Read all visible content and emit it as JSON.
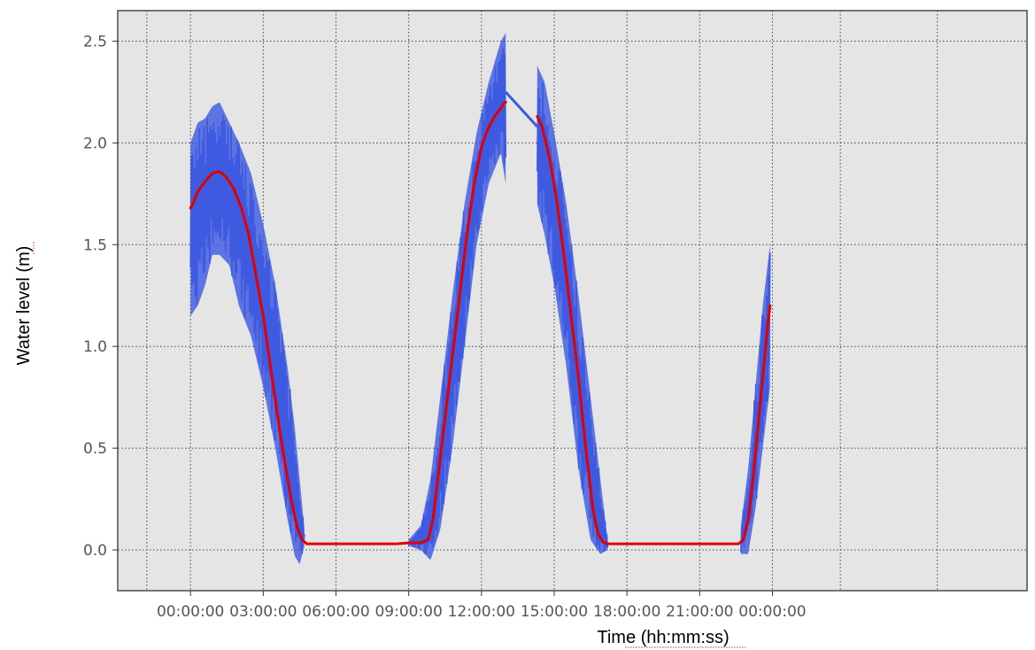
{
  "chart_data": {
    "type": "line",
    "xlabel": "Time (hh:mm:ss)",
    "ylabel": "Water level (m)",
    "x_unit": "hours",
    "xlim": [
      -3.0,
      34.5
    ],
    "ylim": [
      -0.2,
      2.65
    ],
    "x_ticks": [
      {
        "value": 0,
        "label": "00:00:00"
      },
      {
        "value": 3,
        "label": "03:00:00"
      },
      {
        "value": 6,
        "label": "06:00:00"
      },
      {
        "value": 9,
        "label": "09:00:00"
      },
      {
        "value": 12,
        "label": "12:00:00"
      },
      {
        "value": 15,
        "label": "15:00:00"
      },
      {
        "value": 18,
        "label": "18:00:00"
      },
      {
        "value": 21,
        "label": "21:00:00"
      },
      {
        "value": 24,
        "label": "00:00:00"
      }
    ],
    "extra_vertical_grid": [
      -1.8,
      26.8,
      30.8
    ],
    "y_ticks": [
      0.0,
      0.5,
      1.0,
      1.5,
      2.0,
      2.5
    ],
    "y_tick_labels": [
      "0.0",
      "0.5",
      "1.0",
      "1.5",
      "2.0",
      "2.5"
    ],
    "grid": true,
    "background": "#e5e5e5",
    "series": [
      {
        "color": "#3e5ae0",
        "style": "noisy-band",
        "gap_line": {
          "from": {
            "x": 13.0,
            "y": 2.25
          },
          "to": {
            "x": 14.3,
            "y": 2.08
          }
        },
        "segments": [
          {
            "x": [
              0.0,
              0.3,
              0.6,
              0.9,
              1.2,
              1.6,
              2.0,
              2.5,
              3.0,
              3.5,
              4.0,
              4.3,
              4.5,
              4.7
            ],
            "top": [
              2.0,
              2.1,
              2.12,
              2.18,
              2.2,
              2.1,
              2.0,
              1.85,
              1.6,
              1.3,
              0.9,
              0.6,
              0.35,
              0.1
            ],
            "bottom": [
              1.15,
              1.2,
              1.3,
              1.45,
              1.45,
              1.4,
              1.2,
              1.05,
              0.8,
              0.5,
              0.15,
              -0.03,
              -0.07,
              0.02
            ]
          },
          {
            "x": [
              9.0,
              9.5,
              9.9,
              10.3,
              10.8,
              11.3,
              11.8,
              12.3,
              12.8,
              13.0
            ],
            "top": [
              0.05,
              0.12,
              0.35,
              0.75,
              1.25,
              1.7,
              2.05,
              2.3,
              2.5,
              2.54
            ],
            "bottom": [
              0.02,
              0.0,
              -0.05,
              0.1,
              0.5,
              1.0,
              1.5,
              1.8,
              1.95,
              1.8
            ]
          },
          {
            "x": [
              14.3,
              14.6,
              15.0,
              15.5,
              16.0,
              16.5,
              16.9,
              17.2
            ],
            "top": [
              2.38,
              2.3,
              2.05,
              1.7,
              1.25,
              0.75,
              0.35,
              0.05
            ],
            "bottom": [
              1.7,
              1.55,
              1.3,
              0.9,
              0.4,
              0.05,
              -0.02,
              0.0
            ]
          },
          {
            "x": [
              22.7,
              23.0,
              23.3,
              23.6,
              23.9
            ],
            "top": [
              0.12,
              0.4,
              0.8,
              1.2,
              1.5
            ],
            "bottom": [
              -0.02,
              -0.02,
              0.2,
              0.5,
              0.8
            ]
          }
        ]
      },
      {
        "color": "#e00000",
        "style": "smooth-line",
        "gap_after_index": 40,
        "x": [
          0.0,
          0.1,
          0.3,
          0.6,
          0.9,
          1.2,
          1.5,
          1.8,
          2.1,
          2.4,
          2.7,
          3.0,
          3.3,
          3.6,
          3.9,
          4.2,
          4.4,
          4.6,
          4.8,
          5.5,
          6.5,
          7.5,
          8.5,
          9.0,
          9.5,
          9.8,
          10.0,
          10.2,
          10.5,
          10.8,
          11.1,
          11.4,
          11.7,
          12.0,
          12.2,
          12.4,
          12.6,
          12.8,
          12.9,
          13.0,
          13.0,
          14.3,
          14.5,
          14.8,
          15.1,
          15.4,
          15.7,
          16.0,
          16.3,
          16.6,
          16.8,
          17.0,
          17.2,
          18.0,
          19.0,
          20.0,
          21.0,
          22.0,
          22.6,
          22.8,
          23.0,
          23.2,
          23.4,
          23.6,
          23.8,
          23.9
        ],
        "y": [
          1.68,
          1.7,
          1.76,
          1.81,
          1.85,
          1.86,
          1.83,
          1.77,
          1.68,
          1.55,
          1.35,
          1.15,
          0.9,
          0.65,
          0.42,
          0.22,
          0.11,
          0.05,
          0.03,
          0.03,
          0.03,
          0.03,
          0.03,
          0.035,
          0.035,
          0.05,
          0.15,
          0.35,
          0.65,
          0.95,
          1.25,
          1.55,
          1.8,
          1.98,
          2.05,
          2.1,
          2.14,
          2.17,
          2.19,
          2.2,
          2.2,
          2.13,
          2.08,
          1.93,
          1.72,
          1.45,
          1.15,
          0.85,
          0.5,
          0.2,
          0.08,
          0.04,
          0.03,
          0.03,
          0.03,
          0.03,
          0.03,
          0.03,
          0.03,
          0.05,
          0.15,
          0.35,
          0.6,
          0.85,
          1.1,
          1.2
        ]
      }
    ]
  }
}
